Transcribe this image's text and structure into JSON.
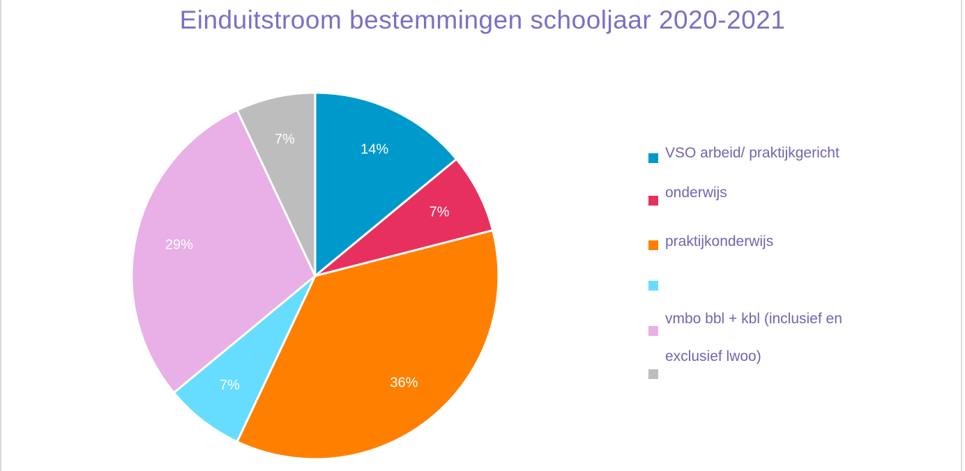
{
  "chart_data": {
    "type": "pie",
    "title": "Einduitstroom bestemmingen schooljaar 2020-2021",
    "slices": [
      {
        "label": "VSO arbeid/ praktijkgericht",
        "value": 14,
        "display": "14%",
        "color": "#0099cc"
      },
      {
        "label": "onderwijs",
        "value": 7,
        "display": "7%",
        "color": "#e8305f"
      },
      {
        "label": "praktijkonderwijs",
        "value": 36,
        "display": "36%",
        "color": "#ff8000"
      },
      {
        "label": "",
        "value": 7,
        "display": "7%",
        "color": "#66ddff"
      },
      {
        "label": "vmbo bbl + kbl (inclusief en",
        "value": 29,
        "display": "29%",
        "color": "#e8b0e6"
      },
      {
        "label": "exclusief lwoo)",
        "value": 7,
        "display": "7%",
        "color": "#bdbdbd"
      }
    ],
    "legend_position": "right"
  }
}
